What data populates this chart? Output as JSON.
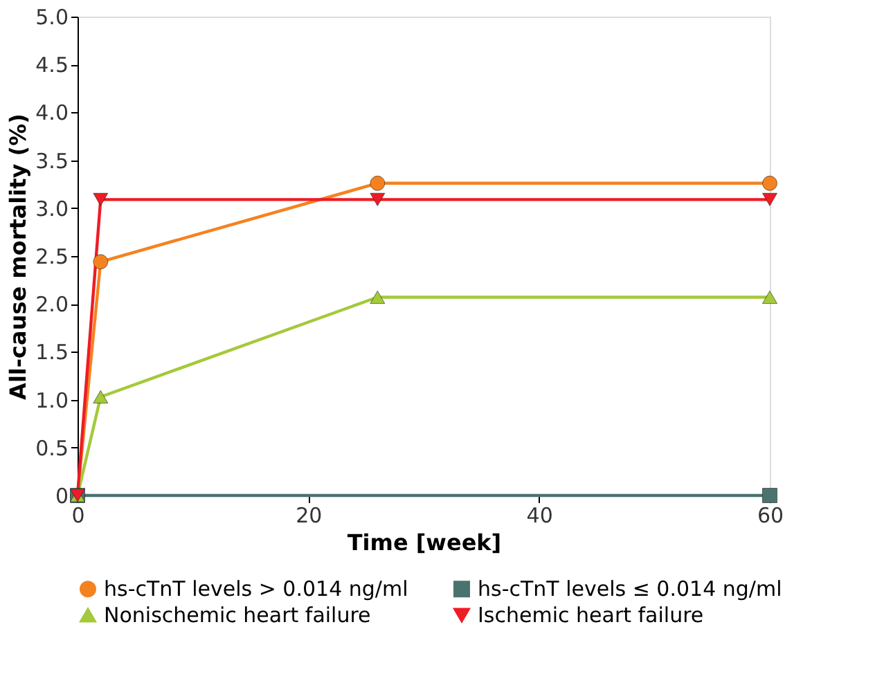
{
  "chart_data": {
    "type": "line",
    "xlabel": "Time [week]",
    "ylabel": "All-cause mortality (%)",
    "xlim": [
      0,
      60
    ],
    "xticks": [
      0,
      20,
      40,
      60
    ],
    "ylim": [
      0,
      5
    ],
    "yticks": [
      0,
      {
        "value": 0.5,
        "label": "0.5"
      },
      {
        "value": 1,
        "label": "1.0"
      },
      {
        "value": 1.5,
        "label": "1.5"
      },
      {
        "value": 2,
        "label": "2.0"
      },
      {
        "value": 2.5,
        "label": "2.5"
      },
      {
        "value": 3,
        "label": "3.0"
      },
      {
        "value": 3.5,
        "label": "3.5"
      },
      {
        "value": 4,
        "label": "4.0"
      },
      {
        "value": 4.5,
        "label": "4.5"
      },
      {
        "value": 5,
        "label": "5.0"
      }
    ],
    "grid": false,
    "legend": "bottom",
    "series": [
      {
        "name": "hs-cTnT levels > 0.014 ng/ml",
        "color": "#f58220",
        "marker": "circle",
        "x": [
          0,
          2,
          26,
          60
        ],
        "values": [
          0,
          2.44,
          3.26,
          3.26
        ]
      },
      {
        "name": "hs-cTnT levels ≤ 0.014 ng/ml",
        "color": "#4a7370",
        "marker": "square",
        "x": [
          0,
          60
        ],
        "values": [
          0,
          0
        ]
      },
      {
        "name": "Nonischemic heart failure",
        "color": "#a4c93a",
        "marker": "triangle",
        "x": [
          0,
          2,
          26,
          60
        ],
        "values": [
          0,
          1.03,
          2.07,
          2.07
        ]
      },
      {
        "name": "Ischemic heart failure",
        "color": "#ee1c25",
        "marker": "triangle-down",
        "x": [
          0,
          2,
          26,
          60
        ],
        "values": [
          0,
          3.09,
          3.09,
          3.09
        ]
      }
    ]
  }
}
